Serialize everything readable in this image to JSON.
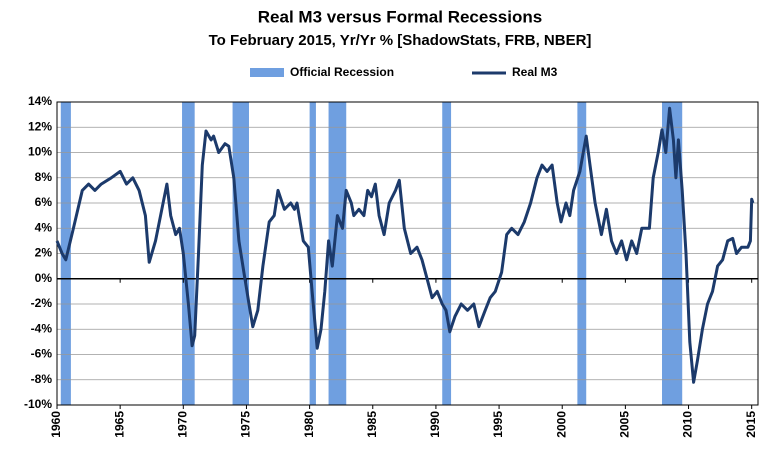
{
  "chart_data": {
    "type": "line",
    "title": "Real M3 versus Formal Recessions",
    "subtitle": "To February 2015, Yr/Yr % [ShadowStats, FRB, NBER]",
    "recessions": {
      "name": "Official Recession",
      "color": "#6f9fe0",
      "start": [
        1960.3,
        1969.9,
        1973.9,
        1980.0,
        1981.5,
        1990.5,
        2001.2,
        2007.9
      ],
      "end": [
        1961.1,
        1970.9,
        1975.2,
        1980.5,
        1982.9,
        1991.2,
        2001.9,
        2009.5
      ]
    },
    "x": [
      1960.0,
      1960.4,
      1960.7,
      1961.3,
      1962.0,
      1962.5,
      1963.0,
      1963.5,
      1964.3,
      1965.0,
      1965.5,
      1966.0,
      1966.5,
      1967.0,
      1967.3,
      1967.8,
      1968.4,
      1968.7,
      1969.0,
      1969.4,
      1969.7,
      1970.0,
      1970.4,
      1970.7,
      1970.9,
      1971.2,
      1971.5,
      1971.8,
      1972.2,
      1972.4,
      1972.8,
      1973.3,
      1973.6,
      1974.0,
      1974.4,
      1974.8,
      1975.2,
      1975.5,
      1975.9,
      1976.3,
      1976.8,
      1977.2,
      1977.5,
      1978.0,
      1978.5,
      1978.8,
      1979.0,
      1979.5,
      1979.9,
      1980.2,
      1980.6,
      1980.9,
      1981.2,
      1981.5,
      1981.8,
      1982.2,
      1982.6,
      1982.9,
      1983.3,
      1983.5,
      1983.9,
      1984.3,
      1984.6,
      1984.9,
      1985.2,
      1985.5,
      1985.9,
      1986.3,
      1986.8,
      1987.1,
      1987.5,
      1988.0,
      1988.5,
      1988.9,
      1989.3,
      1989.7,
      1990.1,
      1990.5,
      1990.8,
      1991.1,
      1991.5,
      1992.0,
      1992.5,
      1993.0,
      1993.4,
      1993.9,
      1994.3,
      1994.7,
      1995.2,
      1995.6,
      1996.0,
      1996.5,
      1997.0,
      1997.5,
      1998.0,
      1998.4,
      1998.8,
      1999.2,
      1999.6,
      1999.9,
      2000.3,
      2000.6,
      2000.9,
      2001.4,
      2001.9,
      2002.2,
      2002.6,
      2003.1,
      2003.5,
      2003.9,
      2004.3,
      2004.7,
      2005.1,
      2005.5,
      2005.9,
      2006.3,
      2006.9,
      2007.2,
      2007.6,
      2007.9,
      2008.2,
      2008.5,
      2008.8,
      2009.0,
      2009.2,
      2009.5,
      2009.8,
      2010.1,
      2010.4,
      2010.7,
      2011.1,
      2011.5,
      2011.9,
      2012.3,
      2012.7,
      2013.1,
      2013.5,
      2013.8,
      2014.2,
      2014.7,
      2014.9,
      2015.0,
      2015.1
    ],
    "series": [
      {
        "name": "Real M3",
        "color": "#1c3a6b",
        "values": [
          3,
          2,
          1.5,
          4,
          7,
          7.5,
          7,
          7.5,
          8,
          8.5,
          7.5,
          8,
          7,
          5,
          1.3,
          3,
          6,
          7.5,
          5,
          3.5,
          4,
          2,
          -2,
          -5.3,
          -4.5,
          2,
          9,
          11.7,
          11,
          11.3,
          10,
          10.7,
          10.5,
          8,
          3,
          0.5,
          -2,
          -3.8,
          -2.5,
          1,
          4.5,
          5,
          7,
          5.5,
          6,
          5.5,
          6,
          3,
          2.5,
          -1,
          -5.5,
          -4,
          -1,
          3,
          1,
          5,
          4,
          7,
          6,
          5,
          5.5,
          5,
          7,
          6.5,
          7.5,
          5,
          3.5,
          6,
          7,
          7.8,
          4,
          2,
          2.5,
          1.5,
          0,
          -1.5,
          -1,
          -2,
          -2.5,
          -4.2,
          -3,
          -2,
          -2.5,
          -2,
          -3.8,
          -2.5,
          -1.5,
          -1,
          0.5,
          3.5,
          4,
          3.5,
          4.5,
          6,
          8,
          9,
          8.5,
          9,
          6,
          4.5,
          6,
          5,
          7,
          8.5,
          11.3,
          9,
          6,
          3.5,
          5.5,
          3,
          2,
          3,
          1.5,
          3,
          2,
          4,
          4,
          8,
          10,
          11.8,
          10,
          13.5,
          11,
          8,
          11,
          7,
          2,
          -5,
          -8.2,
          -6.5,
          -4,
          -2,
          -1,
          1,
          1.5,
          3,
          3.2,
          2,
          2.5,
          2.5,
          3,
          6.3,
          6
        ]
      }
    ],
    "xlim": [
      1960,
      2015.5
    ],
    "xticks": [
      1960,
      1965,
      1970,
      1975,
      1980,
      1985,
      1990,
      1995,
      2000,
      2005,
      2010,
      2015
    ],
    "ylim": [
      -10,
      14
    ],
    "yticks": [
      {
        "value": -10,
        "label": "-10%"
      },
      {
        "value": -8,
        "label": "-8%"
      },
      {
        "value": -6,
        "label": "-6%"
      },
      {
        "value": -4,
        "label": "-4%"
      },
      {
        "value": -2,
        "label": "-2%"
      },
      {
        "value": 0,
        "label": "0%"
      },
      {
        "value": 2,
        "label": "2%"
      },
      {
        "value": 4,
        "label": "4%"
      },
      {
        "value": 6,
        "label": "6%"
      },
      {
        "value": 8,
        "label": "8%"
      },
      {
        "value": 10,
        "label": "10%"
      },
      {
        "value": 12,
        "label": "12%"
      },
      {
        "value": 14,
        "label": "14%"
      }
    ],
    "grid": true
  }
}
